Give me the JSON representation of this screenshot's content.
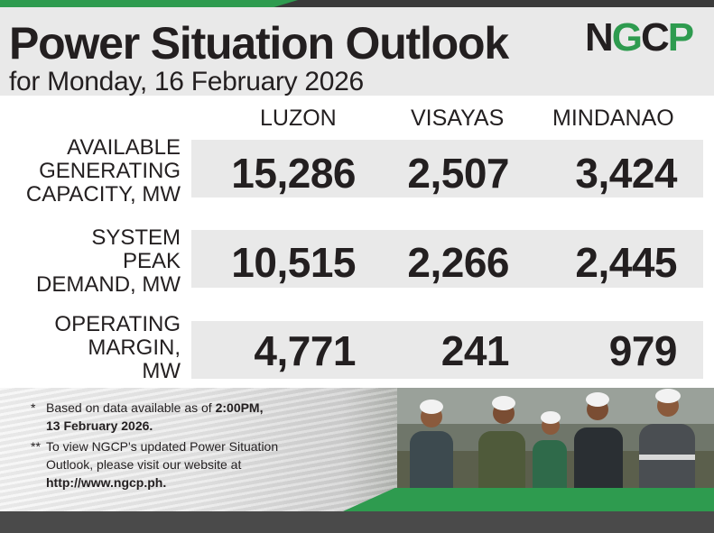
{
  "header": {
    "title": "Power Situation Outlook",
    "subtitle": "for Monday, 16 February 2026",
    "logo": {
      "n": "N",
      "g": "G",
      "c": "C",
      "p": "P"
    }
  },
  "columns": [
    "LUZON",
    "VISAYAS",
    "MINDANAO"
  ],
  "rows": [
    {
      "label": [
        "AVAILABLE",
        "GENERATING",
        "CAPACITY, MW"
      ],
      "values": [
        "15,286",
        "2,507",
        "3,424"
      ]
    },
    {
      "label": [
        "SYSTEM",
        "PEAK",
        "DEMAND, MW"
      ],
      "values": [
        "10,515",
        "2,266",
        "2,445"
      ]
    },
    {
      "label": [
        "OPERATING",
        "MARGIN,",
        "MW"
      ],
      "values": [
        "4,771",
        "241",
        "979"
      ]
    }
  ],
  "notes": [
    {
      "mark": "*",
      "line1_pre": "Based on data available as of ",
      "line1_bold": "2:00PM,",
      "line2_bold": "13 February 2026."
    },
    {
      "mark": "**",
      "line1": "To view NGCP's updated Power Situation",
      "line2": "Outlook, please visit our website at",
      "line3_bold": "http://www.ngcp.ph."
    }
  ],
  "colors": {
    "brand_green": "#2e9b4f",
    "text_dark": "#231f20",
    "panel_grey": "#e9e9e9"
  },
  "icons": {
    "photo": "ngcp-field-workers-photo"
  }
}
